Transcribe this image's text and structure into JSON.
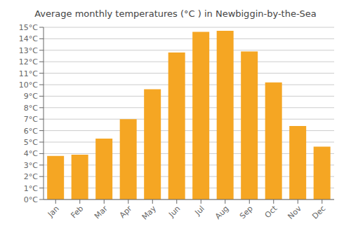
{
  "chart_data": {
    "type": "bar",
    "title": "Average monthly temperatures (°C ) in Newbiggin-by-the-Sea",
    "categories": [
      "Jan",
      "Feb",
      "Mar",
      "Apr",
      "May",
      "Jun",
      "Jul",
      "Aug",
      "Sep",
      "Oct",
      "Nov",
      "Dec"
    ],
    "values": [
      3.8,
      3.9,
      5.3,
      7.0,
      9.6,
      12.8,
      14.6,
      14.7,
      12.9,
      10.2,
      6.4,
      4.6
    ],
    "color": "#F5A623",
    "ylim": [
      0,
      15
    ],
    "yticks": [
      {
        "value": 0,
        "label": "0°C"
      },
      {
        "value": 1,
        "label": "1°C"
      },
      {
        "value": 2,
        "label": "2°C"
      },
      {
        "value": 3,
        "label": "3°C"
      },
      {
        "value": 4,
        "label": "4°C"
      },
      {
        "value": 5,
        "label": "5°C"
      },
      {
        "value": 6,
        "label": "6°C"
      },
      {
        "value": 7,
        "label": "7°C"
      },
      {
        "value": 8,
        "label": "8°C"
      },
      {
        "value": 9,
        "label": "9°C"
      },
      {
        "value": 10,
        "label": "10°C"
      },
      {
        "value": 11,
        "label": "11°C"
      },
      {
        "value": 12,
        "label": "12°C"
      },
      {
        "value": 13,
        "label": "13°C"
      },
      {
        "value": 14,
        "label": "14°C"
      },
      {
        "value": 15,
        "label": "15°C"
      }
    ],
    "grid": true
  }
}
